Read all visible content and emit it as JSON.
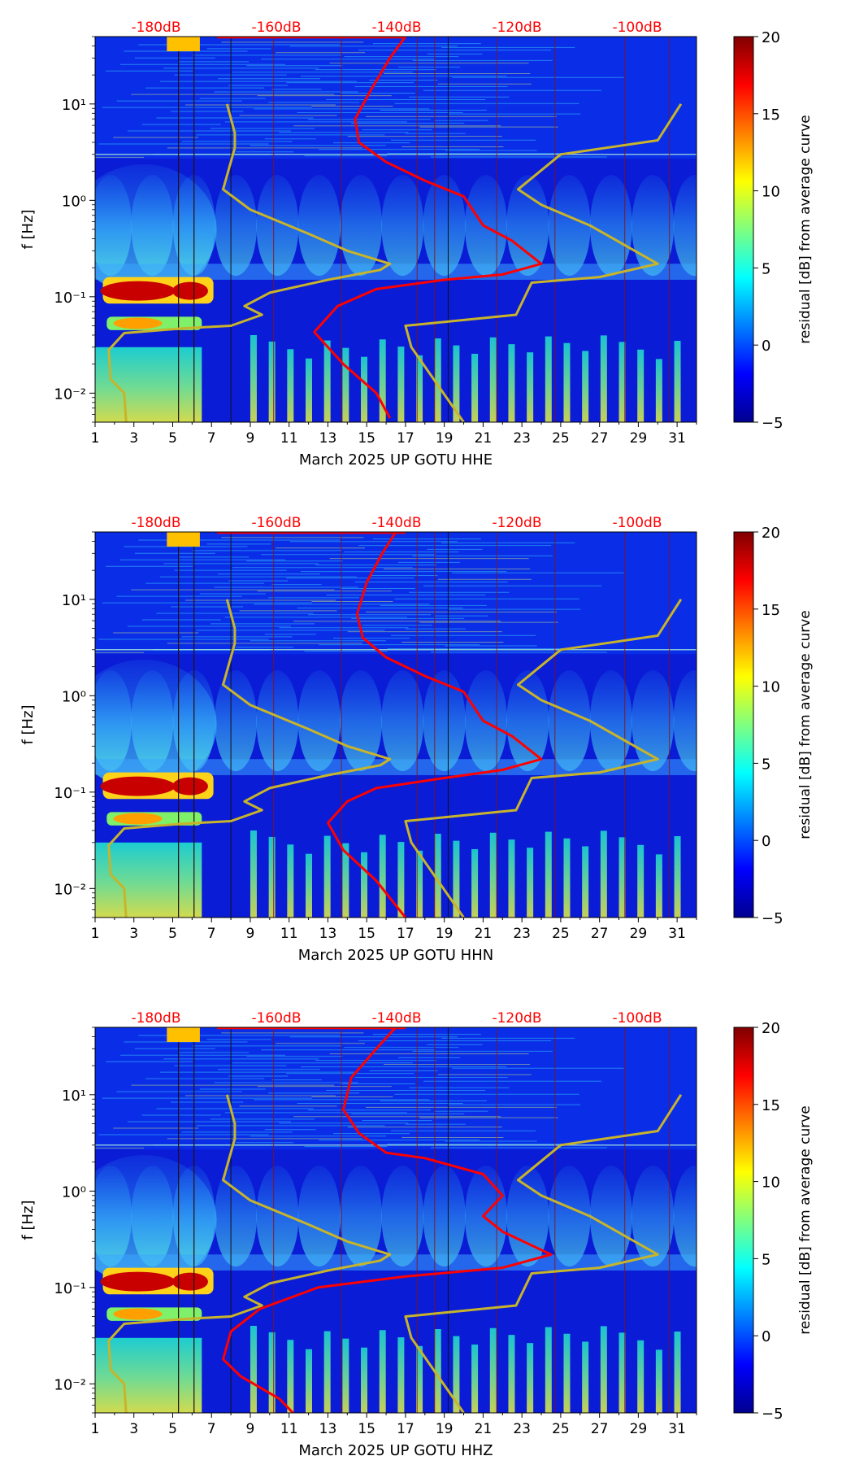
{
  "chart_data": [
    {
      "type": "heatmap",
      "xlabel": "March 2025 UP GOTU  HHE",
      "ylabel": "f [Hz]",
      "xticks": [
        "1",
        "3",
        "5",
        "7",
        "9",
        "11",
        "13",
        "15",
        "17",
        "19",
        "21",
        "23",
        "25",
        "27",
        "29",
        "31"
      ],
      "xlim": [
        1,
        32
      ],
      "ylim": [
        0.005,
        50
      ],
      "yscale": "log",
      "yticks": [
        "10⁻²",
        "10⁻¹",
        "10⁰",
        "10¹"
      ],
      "top_ticks": [
        "-180dB",
        "-160dB",
        "-140dB",
        "-120dB",
        "-100dB"
      ],
      "colorbar": {
        "label": "residual [dB] from average curve",
        "min": -5,
        "max": 20,
        "ticks": [
          "20",
          "15",
          "10",
          "5",
          "0",
          "−5"
        ]
      },
      "series": [
        {
          "color": "#ff0000",
          "points": [
            [
              17,
              50
            ],
            [
              16.2,
              30
            ],
            [
              15.3,
              15
            ],
            [
              14.4,
              7
            ],
            [
              14.6,
              4
            ],
            [
              16,
              2.5
            ],
            [
              18,
              1.6
            ],
            [
              20,
              1.1
            ],
            [
              21,
              0.55
            ],
            [
              22.5,
              0.38
            ],
            [
              24,
              0.22
            ],
            [
              22,
              0.17
            ],
            [
              19,
              0.15
            ],
            [
              15.5,
              0.12
            ],
            [
              13.5,
              0.08
            ],
            [
              12.3,
              0.043
            ],
            [
              13.8,
              0.02
            ],
            [
              15.5,
              0.01
            ],
            [
              16.2,
              0.0055
            ]
          ]
        },
        {
          "color": "#c8b42a",
          "points": [
            [
              7.8,
              10
            ],
            [
              8.2,
              5
            ],
            [
              8.2,
              3.5
            ],
            [
              7.6,
              1.3
            ],
            [
              9,
              0.8
            ],
            [
              12,
              0.45
            ],
            [
              14,
              0.3
            ],
            [
              16.2,
              0.22
            ],
            [
              15.7,
              0.19
            ],
            [
              13,
              0.15
            ],
            [
              10,
              0.11
            ],
            [
              8.7,
              0.08
            ],
            [
              9.6,
              0.065
            ],
            [
              8,
              0.05
            ],
            [
              5.5,
              0.047
            ],
            [
              2.5,
              0.042
            ],
            [
              1.7,
              0.028
            ],
            [
              1.8,
              0.014
            ],
            [
              2.5,
              0.01
            ],
            [
              2.6,
              0.005
            ]
          ]
        },
        {
          "color": "#c8b42a",
          "points": [
            [
              31.2,
              10
            ],
            [
              30,
              4.2
            ],
            [
              25,
              3
            ],
            [
              22.8,
              1.3
            ],
            [
              24,
              0.9
            ],
            [
              26.5,
              0.55
            ],
            [
              30,
              0.22
            ],
            [
              27,
              0.16
            ],
            [
              23.5,
              0.14
            ],
            [
              22.7,
              0.065
            ],
            [
              17,
              0.05
            ],
            [
              17.3,
              0.03
            ],
            [
              20,
              0.005
            ]
          ]
        }
      ]
    },
    {
      "type": "heatmap",
      "xlabel": "March 2025 UP GOTU  HHN",
      "ylabel": "f [Hz]",
      "xticks": [
        "1",
        "3",
        "5",
        "7",
        "9",
        "11",
        "13",
        "15",
        "17",
        "19",
        "21",
        "23",
        "25",
        "27",
        "29",
        "31"
      ],
      "xlim": [
        1,
        32
      ],
      "ylim": [
        0.005,
        50
      ],
      "yscale": "log",
      "yticks": [
        "10⁻²",
        "10⁻¹",
        "10⁰",
        "10¹"
      ],
      "top_ticks": [
        "-180dB",
        "-160dB",
        "-140dB",
        "-120dB",
        "-100dB"
      ],
      "colorbar": {
        "label": "residual [dB] from average curve",
        "min": -5,
        "max": 20,
        "ticks": [
          "20",
          "15",
          "10",
          "5",
          "0",
          "−5"
        ]
      },
      "series": [
        {
          "color": "#ff0000",
          "points": [
            [
              16.5,
              50
            ],
            [
              15.8,
              30
            ],
            [
              15,
              15
            ],
            [
              14.5,
              7
            ],
            [
              14.8,
              4
            ],
            [
              16,
              2.5
            ],
            [
              18,
              1.6
            ],
            [
              20,
              1.1
            ],
            [
              21,
              0.55
            ],
            [
              22.5,
              0.38
            ],
            [
              24,
              0.22
            ],
            [
              22,
              0.17
            ],
            [
              19,
              0.14
            ],
            [
              15.5,
              0.11
            ],
            [
              14,
              0.08
            ],
            [
              13,
              0.048
            ],
            [
              13.8,
              0.025
            ],
            [
              15.5,
              0.012
            ],
            [
              17,
              0.005
            ]
          ]
        },
        {
          "color": "#c8b42a",
          "points": [
            [
              7.8,
              10
            ],
            [
              8.2,
              5
            ],
            [
              8.2,
              3.5
            ],
            [
              7.6,
              1.3
            ],
            [
              9,
              0.8
            ],
            [
              12,
              0.45
            ],
            [
              14,
              0.3
            ],
            [
              16.2,
              0.22
            ],
            [
              15.7,
              0.19
            ],
            [
              13,
              0.15
            ],
            [
              10,
              0.11
            ],
            [
              8.7,
              0.08
            ],
            [
              9.6,
              0.065
            ],
            [
              8,
              0.05
            ],
            [
              5.5,
              0.047
            ],
            [
              2.5,
              0.042
            ],
            [
              1.7,
              0.028
            ],
            [
              1.8,
              0.014
            ],
            [
              2.5,
              0.01
            ],
            [
              2.6,
              0.005
            ]
          ]
        },
        {
          "color": "#c8b42a",
          "points": [
            [
              31.2,
              10
            ],
            [
              30,
              4.2
            ],
            [
              25,
              3
            ],
            [
              22.8,
              1.3
            ],
            [
              24,
              0.9
            ],
            [
              26.5,
              0.55
            ],
            [
              30,
              0.22
            ],
            [
              27,
              0.16
            ],
            [
              23.5,
              0.14
            ],
            [
              22.7,
              0.065
            ],
            [
              17,
              0.05
            ],
            [
              17.3,
              0.03
            ],
            [
              20,
              0.005
            ]
          ]
        }
      ]
    },
    {
      "type": "heatmap",
      "xlabel": "March 2025 UP GOTU  HHZ",
      "ylabel": "f [Hz]",
      "xticks": [
        "1",
        "3",
        "5",
        "7",
        "9",
        "11",
        "13",
        "15",
        "17",
        "19",
        "21",
        "23",
        "25",
        "27",
        "29",
        "31"
      ],
      "xlim": [
        1,
        32
      ],
      "ylim": [
        0.005,
        50
      ],
      "yscale": "log",
      "yticks": [
        "10⁻²",
        "10⁻¹",
        "10⁰",
        "10¹"
      ],
      "top_ticks": [
        "-180dB",
        "-160dB",
        "-140dB",
        "-120dB",
        "-100dB"
      ],
      "colorbar": {
        "label": "residual [dB] from average curve",
        "min": -5,
        "max": 20,
        "ticks": [
          "20",
          "15",
          "10",
          "5",
          "0",
          "−5"
        ]
      },
      "series": [
        {
          "color": "#ff0000",
          "points": [
            [
              16.5,
              50
            ],
            [
              15.5,
              30
            ],
            [
              14.2,
              15
            ],
            [
              13.8,
              7
            ],
            [
              14.6,
              4
            ],
            [
              16,
              2.5
            ],
            [
              18,
              2.2
            ],
            [
              21,
              1.5
            ],
            [
              22,
              0.9
            ],
            [
              21,
              0.55
            ],
            [
              22,
              0.38
            ],
            [
              24.5,
              0.22
            ],
            [
              22,
              0.16
            ],
            [
              17,
              0.13
            ],
            [
              12.5,
              0.1
            ],
            [
              9.5,
              0.06
            ],
            [
              8,
              0.035
            ],
            [
              7.6,
              0.018
            ],
            [
              8.5,
              0.012
            ],
            [
              10.5,
              0.007
            ],
            [
              11.2,
              0.005
            ]
          ]
        },
        {
          "color": "#c8b42a",
          "points": [
            [
              7.8,
              10
            ],
            [
              8.2,
              5
            ],
            [
              8.2,
              3.5
            ],
            [
              7.6,
              1.3
            ],
            [
              9,
              0.8
            ],
            [
              12,
              0.45
            ],
            [
              14,
              0.3
            ],
            [
              16.2,
              0.22
            ],
            [
              15.7,
              0.19
            ],
            [
              13,
              0.15
            ],
            [
              10,
              0.11
            ],
            [
              8.7,
              0.08
            ],
            [
              9.6,
              0.065
            ],
            [
              8,
              0.05
            ],
            [
              5.5,
              0.047
            ],
            [
              2.5,
              0.042
            ],
            [
              1.7,
              0.028
            ],
            [
              1.8,
              0.014
            ],
            [
              2.5,
              0.01
            ],
            [
              2.6,
              0.005
            ]
          ]
        },
        {
          "color": "#c8b42a",
          "points": [
            [
              31.2,
              10
            ],
            [
              30,
              4.2
            ],
            [
              25,
              3
            ],
            [
              22.8,
              1.3
            ],
            [
              24,
              0.9
            ],
            [
              26.5,
              0.55
            ],
            [
              30,
              0.22
            ],
            [
              27,
              0.16
            ],
            [
              23.5,
              0.14
            ],
            [
              22.7,
              0.065
            ],
            [
              17,
              0.05
            ],
            [
              17.3,
              0.03
            ],
            [
              20,
              0.005
            ]
          ]
        }
      ]
    }
  ]
}
